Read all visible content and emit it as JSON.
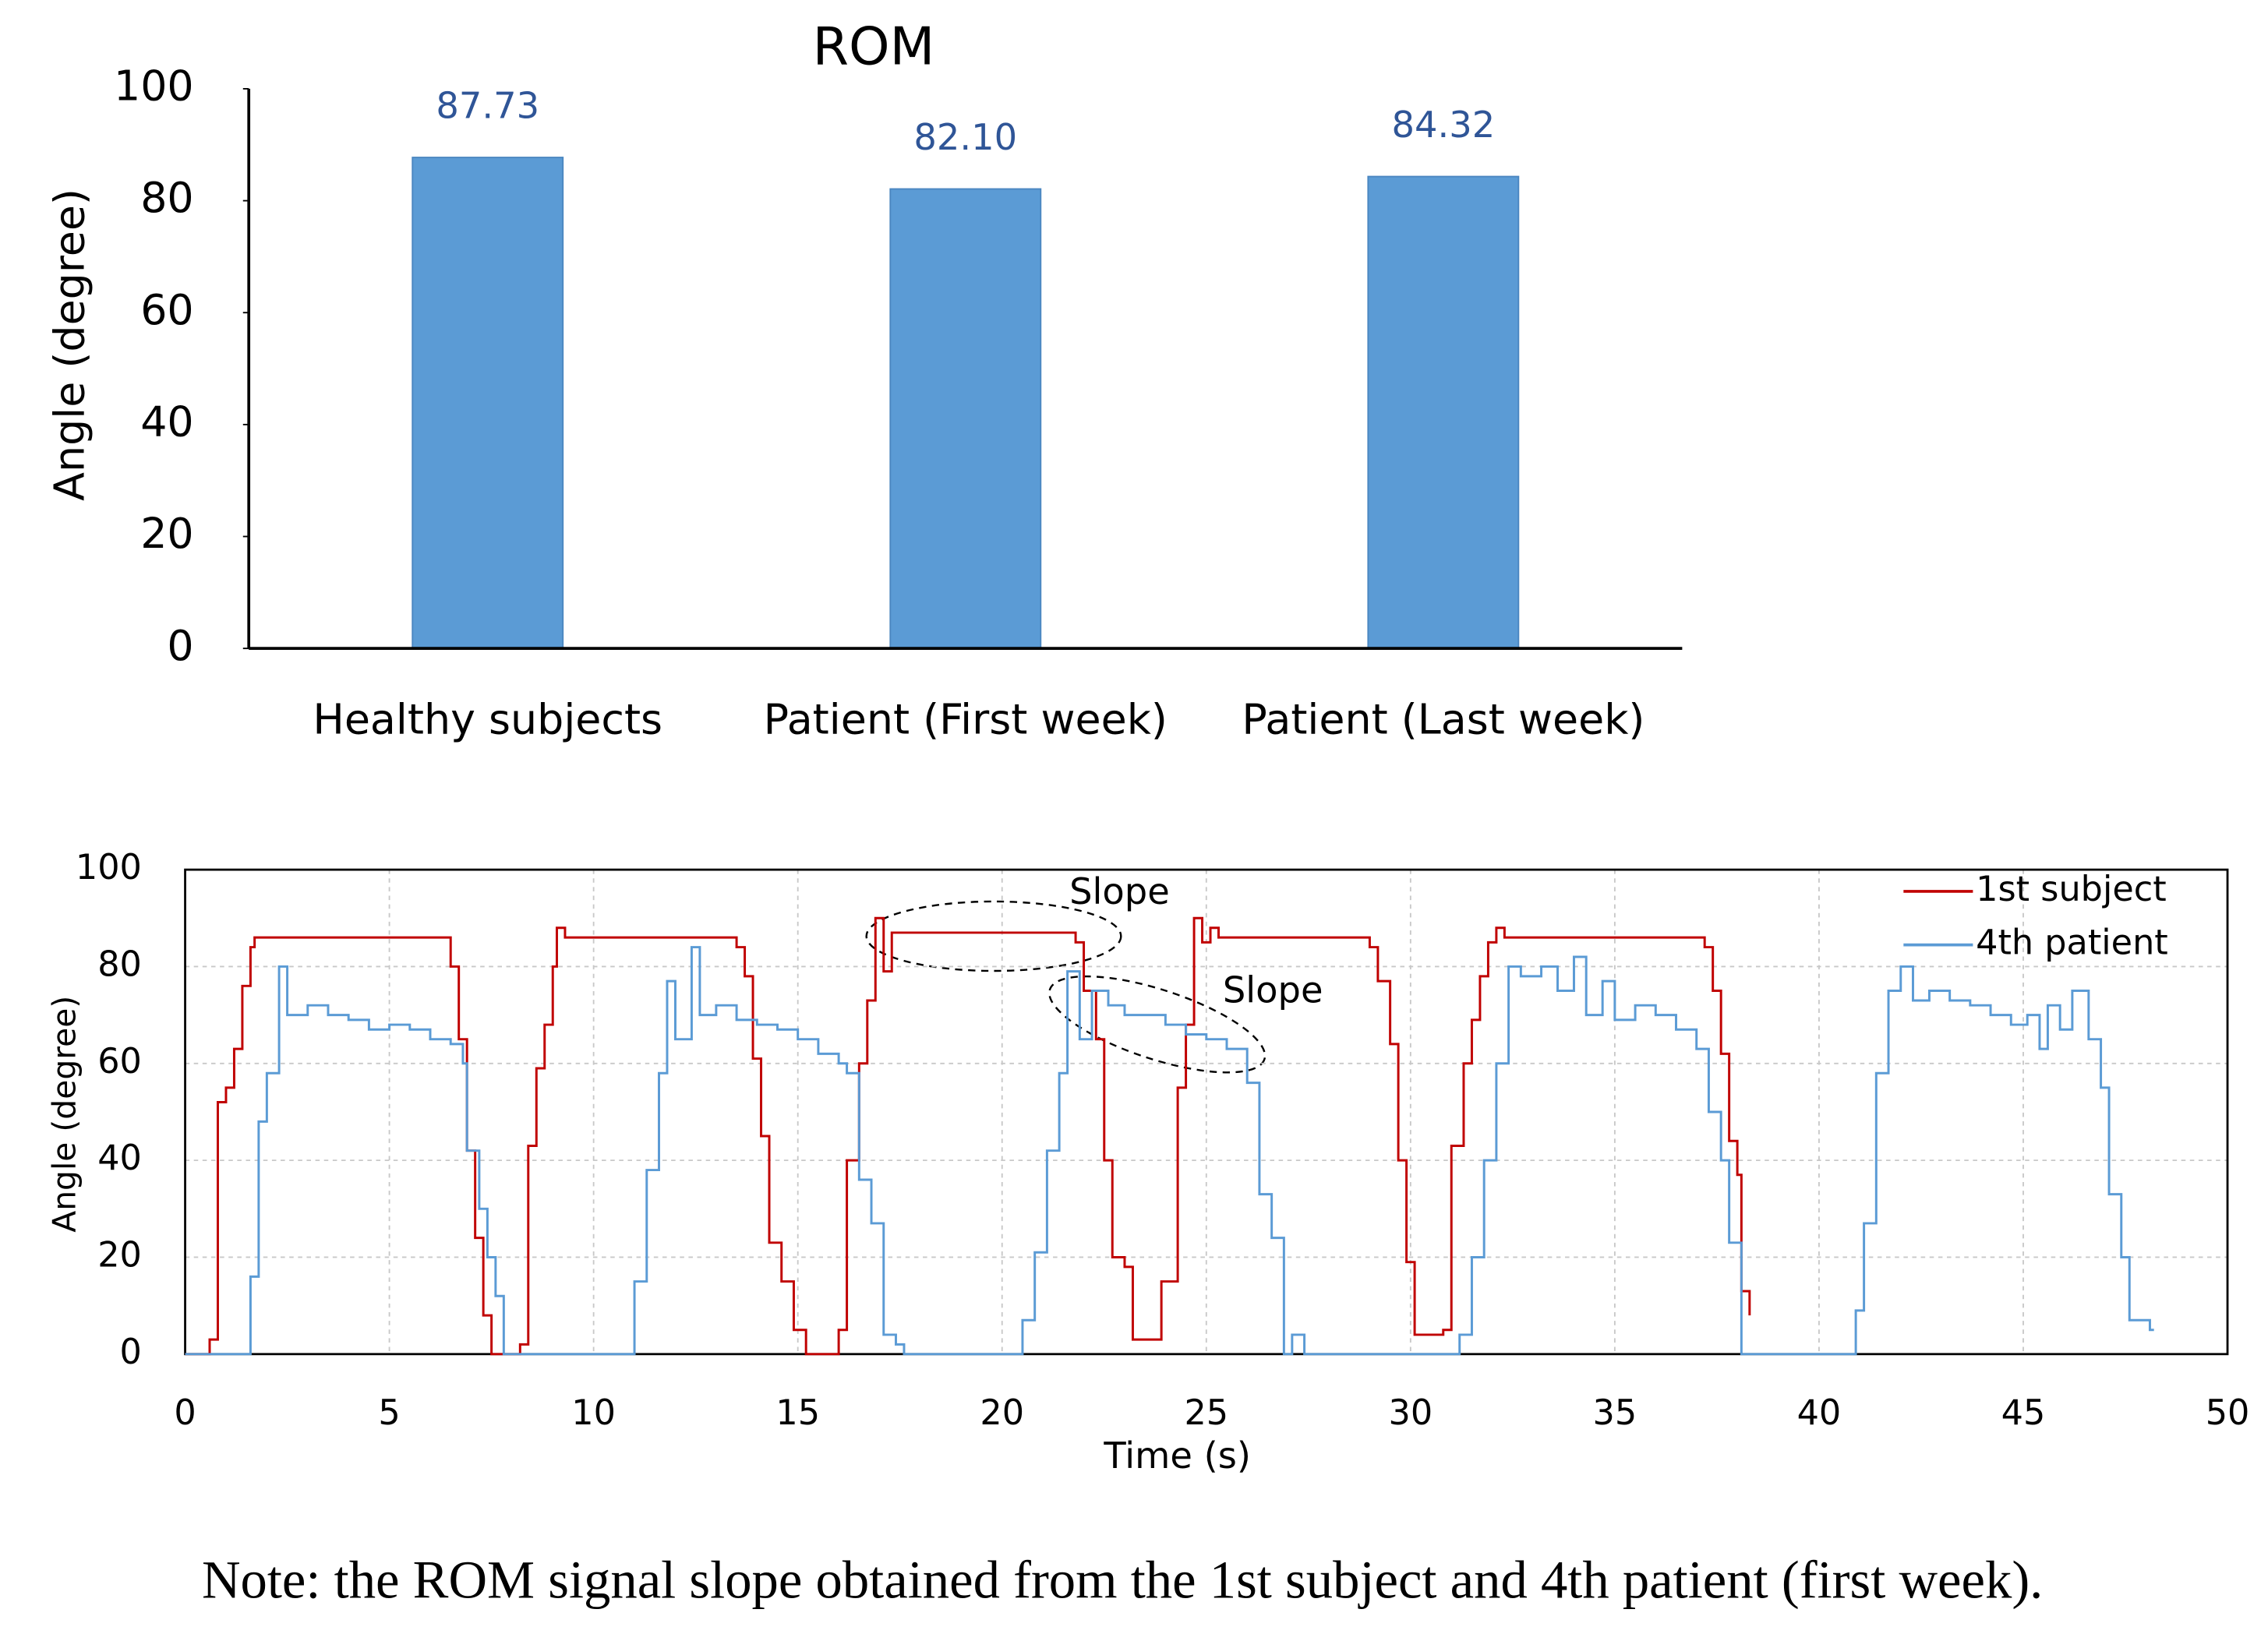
{
  "chart_data": [
    {
      "type": "bar",
      "title": "ROM",
      "y_label": "Angle (degree)",
      "categories": [
        "Healthy subjects",
        "Patient (First week)",
        "Patient (Last week)"
      ],
      "values": [
        87.73,
        82.1,
        84.32
      ],
      "value_labels": [
        "87.73",
        "82.10",
        "84.32"
      ],
      "color": "#5b9bd5",
      "label_color": "#2f5597",
      "ylim": [
        0,
        100
      ],
      "yticks": [
        0,
        20,
        40,
        60,
        80,
        100
      ]
    },
    {
      "type": "line",
      "step": "post",
      "x_label": "Time (s)",
      "y_label": "Angle (degree)",
      "xlim": [
        0,
        50
      ],
      "xticks": [
        0,
        5,
        10,
        15,
        20,
        25,
        30,
        35,
        40,
        45,
        50
      ],
      "ylim": [
        0,
        100
      ],
      "yticks": [
        0,
        20,
        40,
        60,
        80,
        100
      ],
      "grid": true,
      "legend": "top-right",
      "annotations": [
        "Slope",
        "Slope"
      ],
      "series": [
        {
          "name": "1st subject",
          "color": "#c00000",
          "x": [
            0,
            0.6,
            0.8,
            1.0,
            1.2,
            1.4,
            1.6,
            1.7,
            6.5,
            6.7,
            6.9,
            7.1,
            7.3,
            7.5,
            8.2,
            8.4,
            8.6,
            8.8,
            9.0,
            9.1,
            9.3,
            13.5,
            13.7,
            13.9,
            14.1,
            14.3,
            14.6,
            14.9,
            15.2,
            16.0,
            16.2,
            16.5,
            16.7,
            16.9,
            17.1,
            17.3,
            21.8,
            22.0,
            22.3,
            22.5,
            22.7,
            23.0,
            23.2,
            23.9,
            24.3,
            24.5,
            24.7,
            24.9,
            25.1,
            25.3,
            29.0,
            29.2,
            29.5,
            29.7,
            29.9,
            30.1,
            30.8,
            31.0,
            31.3,
            31.5,
            31.7,
            31.9,
            32.1,
            32.3,
            37.2,
            37.4,
            37.6,
            37.8,
            38.0,
            38.1,
            38.3
          ],
          "values": [
            0,
            3,
            52,
            55,
            63,
            76,
            84,
            86,
            80,
            65,
            42,
            24,
            8,
            0,
            2,
            43,
            59,
            68,
            80,
            88,
            86,
            84,
            78,
            61,
            45,
            23,
            15,
            5,
            0,
            5,
            40,
            60,
            73,
            90,
            79,
            87,
            85,
            75,
            65,
            40,
            20,
            18,
            3,
            15,
            55,
            68,
            90,
            85,
            88,
            86,
            84,
            77,
            64,
            40,
            19,
            4,
            5,
            43,
            60,
            69,
            78,
            85,
            88,
            86,
            84,
            75,
            62,
            44,
            37,
            13,
            8
          ]
        },
        {
          "name": "4th patient",
          "color": "#5b9bd5",
          "x": [
            0,
            1.6,
            1.8,
            2.0,
            2.3,
            2.5,
            3.0,
            3.5,
            4.0,
            4.5,
            5.0,
            5.5,
            6.0,
            6.5,
            6.8,
            6.9,
            7.2,
            7.4,
            7.6,
            7.8,
            11.0,
            11.3,
            11.6,
            11.8,
            12.0,
            12.4,
            12.6,
            13.0,
            13.5,
            14.0,
            14.5,
            15.0,
            15.5,
            16.0,
            16.2,
            16.5,
            16.8,
            17.1,
            17.4,
            17.6,
            20.5,
            20.8,
            21.1,
            21.4,
            21.6,
            21.9,
            22.2,
            22.6,
            23.0,
            24.0,
            24.5,
            25.0,
            25.5,
            26.0,
            26.3,
            26.6,
            26.9,
            27.1,
            27.4,
            31.2,
            31.5,
            31.8,
            32.1,
            32.4,
            32.7,
            33.2,
            33.6,
            34.0,
            34.3,
            34.7,
            35.0,
            35.5,
            36.0,
            36.5,
            37.0,
            37.3,
            37.6,
            37.8,
            38.1,
            40.9,
            41.1,
            41.4,
            41.7,
            42.0,
            42.3,
            42.7,
            43.2,
            43.7,
            44.2,
            44.7,
            45.1,
            45.4,
            45.6,
            45.9,
            46.2,
            46.6,
            46.9,
            47.1,
            47.4,
            47.6,
            48.1,
            48.2
          ],
          "values": [
            0,
            16,
            48,
            58,
            80,
            70,
            72,
            70,
            69,
            67,
            68,
            67,
            65,
            64,
            60,
            42,
            30,
            20,
            12,
            0,
            15,
            38,
            58,
            77,
            65,
            84,
            70,
            72,
            69,
            68,
            67,
            65,
            62,
            60,
            58,
            36,
            27,
            4,
            2,
            0,
            7,
            21,
            42,
            58,
            79,
            65,
            75,
            72,
            70,
            68,
            66,
            65,
            63,
            56,
            33,
            24,
            0,
            4,
            0,
            4,
            20,
            40,
            60,
            80,
            78,
            80,
            75,
            82,
            70,
            77,
            69,
            72,
            70,
            67,
            63,
            50,
            40,
            23,
            0,
            9,
            27,
            58,
            75,
            80,
            73,
            75,
            73,
            72,
            70,
            68,
            70,
            63,
            72,
            67,
            75,
            65,
            55,
            33,
            20,
            7,
            5,
            5
          ]
        }
      ]
    }
  ],
  "note": "Note: the ROM signal slope obtained from the 1st subject and 4th patient (first week)."
}
